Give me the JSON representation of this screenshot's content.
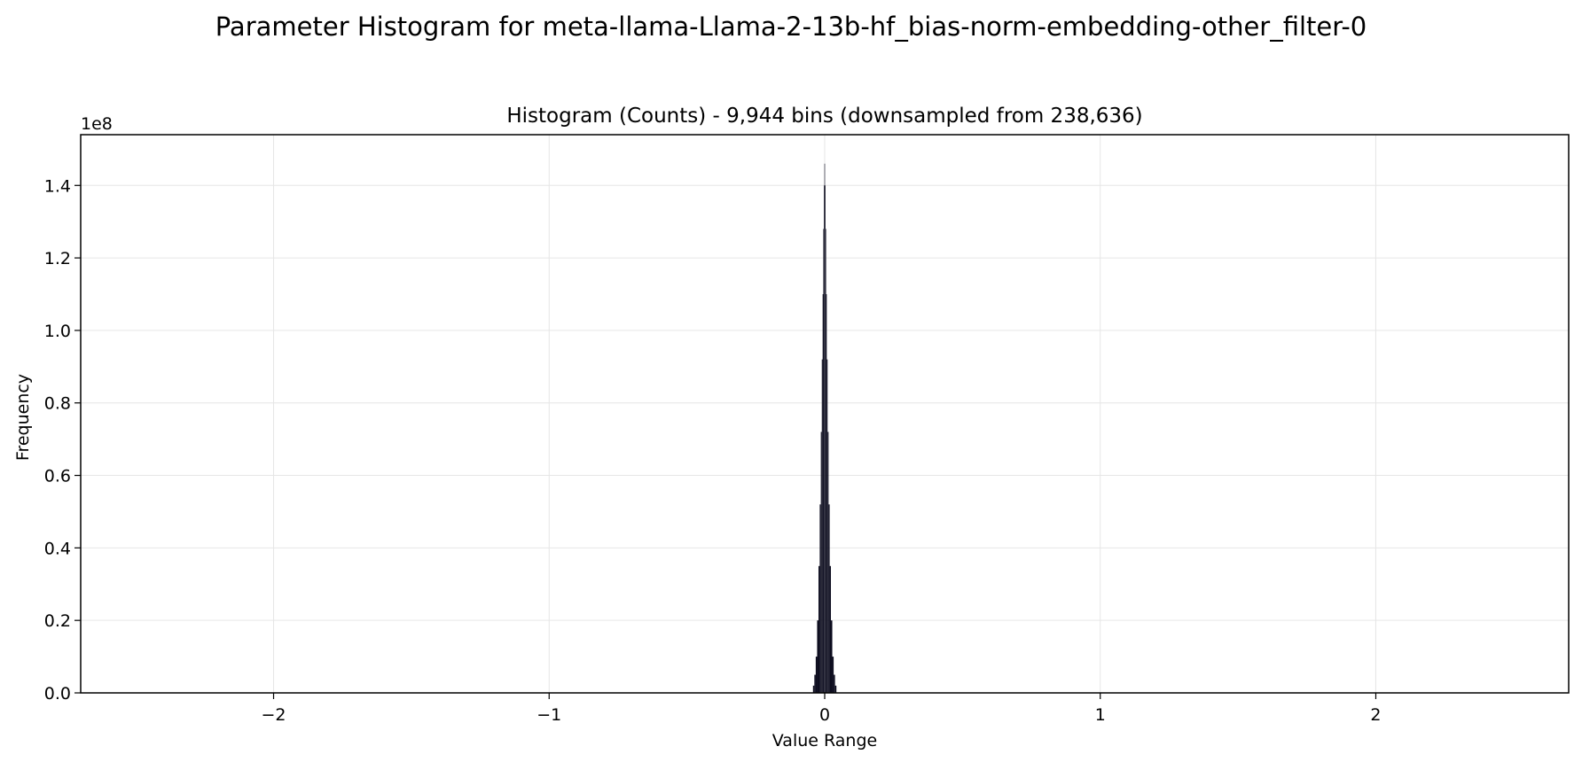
{
  "suptitle": "Parameter Histogram for meta-llama-Llama-2-13b-hf_bias-norm-embedding-other_filter-0",
  "colors": {
    "bar": "#0c0c1e",
    "grid": "#e6e6e6",
    "axis": "#000000"
  },
  "chart_data": {
    "type": "bar",
    "title": "Histogram (Counts) - 9,944 bins (downsampled from 238,636)",
    "xlabel": "Value Range",
    "ylabel": "Frequency",
    "y_offset_label": "1e8",
    "xlim": [
      -2.7,
      2.7
    ],
    "ylim": [
      0,
      1.54
    ],
    "x_ticks": [
      -2,
      -1,
      0,
      1,
      2
    ],
    "x_tick_labels": [
      "−2",
      "−1",
      "0",
      "1",
      "2"
    ],
    "y_ticks": [
      0,
      0.2,
      0.4,
      0.6,
      0.8,
      1.0,
      1.2,
      1.4
    ],
    "y_tick_labels": [
      "0.0",
      "0.2",
      "0.4",
      "0.6",
      "0.8",
      "1.0",
      "1.2",
      "1.4"
    ],
    "grid": true,
    "bins": {
      "x": [
        -0.04,
        -0.035,
        -0.03,
        -0.025,
        -0.02,
        -0.016,
        -0.012,
        -0.009,
        -0.006,
        -0.004,
        -0.002,
        0.0,
        0.002,
        0.004,
        0.006,
        0.009,
        0.012,
        0.016,
        0.02,
        0.025,
        0.03,
        0.035,
        0.04
      ],
      "y": [
        0.02,
        0.05,
        0.1,
        0.2,
        0.35,
        0.52,
        0.72,
        0.92,
        1.1,
        1.28,
        1.4,
        1.46,
        1.4,
        1.28,
        1.1,
        0.92,
        0.72,
        0.52,
        0.35,
        0.2,
        0.1,
        0.05,
        0.02
      ]
    }
  }
}
